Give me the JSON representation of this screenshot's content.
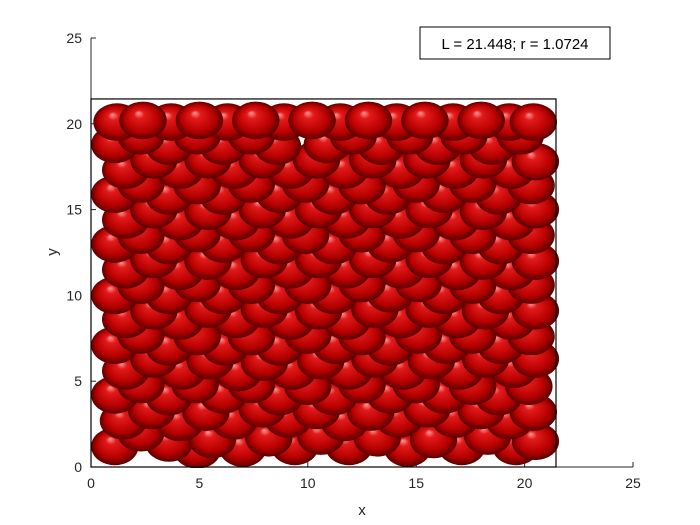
{
  "chart_data": {
    "type": "scatter",
    "annotation": "L = 21.448; r = 1.0724",
    "xlabel": "x",
    "ylabel": "y",
    "xlim": [
      0,
      25
    ],
    "ylim": [
      0,
      25
    ],
    "x_ticks": [
      "0",
      "5",
      "10",
      "15",
      "20",
      "25"
    ],
    "y_ticks": [
      "0",
      "5",
      "10",
      "15",
      "20",
      "25"
    ],
    "box_size": 21.448,
    "particle_radius": 1.0724,
    "marker": "shaded sphere",
    "colors": {
      "sphere": "#cc0000",
      "sphere_dark": "#5a0000",
      "sphere_highlight": "#ff9a9a",
      "axis": "#262626",
      "box": "#000000"
    },
    "particles": [
      [
        1.1,
        1.2
      ],
      [
        2.3,
        2.0
      ],
      [
        3.6,
        1.4
      ],
      [
        4.9,
        1.0
      ],
      [
        5.6,
        1.6
      ],
      [
        7.0,
        1.1
      ],
      [
        8.2,
        1.7
      ],
      [
        9.4,
        1.2
      ],
      [
        10.6,
        1.8
      ],
      [
        11.9,
        1.2
      ],
      [
        13.2,
        1.7
      ],
      [
        14.6,
        1.1
      ],
      [
        15.8,
        1.6
      ],
      [
        17.1,
        1.2
      ],
      [
        18.3,
        1.8
      ],
      [
        19.6,
        1.2
      ],
      [
        20.5,
        1.5
      ],
      [
        1.5,
        2.7
      ],
      [
        2.8,
        3.3
      ],
      [
        4.1,
        2.6
      ],
      [
        5.3,
        3.2
      ],
      [
        6.6,
        2.7
      ],
      [
        7.9,
        3.4
      ],
      [
        9.1,
        2.8
      ],
      [
        10.4,
        3.3
      ],
      [
        11.7,
        2.6
      ],
      [
        12.9,
        3.2
      ],
      [
        14.2,
        2.8
      ],
      [
        15.5,
        3.4
      ],
      [
        16.8,
        2.8
      ],
      [
        18.0,
        3.3
      ],
      [
        19.3,
        2.7
      ],
      [
        20.4,
        3.2
      ],
      [
        1.1,
        4.2
      ],
      [
        2.3,
        4.8
      ],
      [
        3.6,
        4.1
      ],
      [
        4.8,
        4.8
      ],
      [
        6.1,
        4.2
      ],
      [
        7.4,
        4.8
      ],
      [
        8.7,
        4.1
      ],
      [
        10.0,
        4.7
      ],
      [
        11.2,
        4.1
      ],
      [
        12.5,
        4.8
      ],
      [
        13.8,
        4.2
      ],
      [
        15.0,
        4.8
      ],
      [
        16.3,
        4.2
      ],
      [
        17.6,
        4.7
      ],
      [
        18.8,
        4.1
      ],
      [
        20.2,
        4.7
      ],
      [
        1.6,
        5.6
      ],
      [
        2.9,
        6.3
      ],
      [
        4.2,
        5.6
      ],
      [
        5.5,
        6.2
      ],
      [
        6.8,
        5.5
      ],
      [
        8.0,
        6.1
      ],
      [
        9.3,
        5.6
      ],
      [
        10.6,
        6.2
      ],
      [
        11.9,
        5.6
      ],
      [
        13.1,
        6.3
      ],
      [
        14.4,
        5.6
      ],
      [
        15.7,
        6.2
      ],
      [
        17.0,
        5.6
      ],
      [
        18.2,
        6.3
      ],
      [
        19.5,
        5.7
      ],
      [
        20.5,
        6.3
      ],
      [
        1.1,
        7.1
      ],
      [
        2.3,
        7.7
      ],
      [
        3.6,
        7.0
      ],
      [
        4.9,
        7.6
      ],
      [
        6.2,
        7.0
      ],
      [
        7.4,
        7.6
      ],
      [
        8.7,
        7.0
      ],
      [
        10.0,
        7.7
      ],
      [
        11.3,
        7.1
      ],
      [
        12.5,
        7.6
      ],
      [
        13.8,
        7.0
      ],
      [
        15.1,
        7.7
      ],
      [
        16.4,
        7.1
      ],
      [
        17.6,
        7.7
      ],
      [
        18.9,
        7.1
      ],
      [
        20.3,
        7.6
      ],
      [
        1.6,
        8.6
      ],
      [
        2.9,
        9.1
      ],
      [
        4.1,
        8.5
      ],
      [
        5.4,
        9.2
      ],
      [
        6.7,
        8.6
      ],
      [
        8.0,
        9.2
      ],
      [
        9.2,
        8.5
      ],
      [
        10.5,
        9.1
      ],
      [
        11.8,
        8.5
      ],
      [
        13.1,
        9.2
      ],
      [
        14.3,
        8.6
      ],
      [
        15.6,
        9.2
      ],
      [
        16.9,
        8.6
      ],
      [
        18.2,
        9.1
      ],
      [
        19.4,
        8.5
      ],
      [
        20.5,
        9.1
      ],
      [
        1.1,
        10.0
      ],
      [
        2.3,
        10.6
      ],
      [
        3.6,
        10.0
      ],
      [
        4.9,
        10.7
      ],
      [
        6.1,
        10.0
      ],
      [
        7.4,
        10.6
      ],
      [
        8.7,
        10.0
      ],
      [
        10.0,
        10.6
      ],
      [
        11.2,
        10.0
      ],
      [
        12.5,
        10.7
      ],
      [
        13.8,
        10.1
      ],
      [
        15.1,
        10.7
      ],
      [
        16.3,
        10.0
      ],
      [
        17.6,
        10.6
      ],
      [
        18.9,
        10.0
      ],
      [
        20.3,
        10.6
      ],
      [
        1.6,
        11.5
      ],
      [
        2.9,
        12.1
      ],
      [
        4.1,
        11.4
      ],
      [
        5.4,
        12.0
      ],
      [
        6.7,
        11.4
      ],
      [
        8.0,
        12.1
      ],
      [
        9.2,
        11.5
      ],
      [
        10.5,
        12.1
      ],
      [
        11.8,
        11.5
      ],
      [
        13.0,
        12.1
      ],
      [
        14.3,
        11.5
      ],
      [
        15.6,
        12.1
      ],
      [
        16.9,
        11.4
      ],
      [
        18.1,
        12.0
      ],
      [
        19.4,
        11.4
      ],
      [
        20.5,
        12.0
      ],
      [
        1.1,
        13.0
      ],
      [
        2.3,
        13.5
      ],
      [
        3.6,
        12.9
      ],
      [
        4.9,
        13.6
      ],
      [
        6.1,
        13.0
      ],
      [
        7.4,
        13.6
      ],
      [
        8.7,
        12.9
      ],
      [
        9.9,
        13.5
      ],
      [
        11.2,
        12.9
      ],
      [
        12.5,
        13.6
      ],
      [
        13.8,
        13.0
      ],
      [
        15.0,
        13.6
      ],
      [
        16.3,
        12.9
      ],
      [
        17.6,
        13.5
      ],
      [
        18.9,
        12.9
      ],
      [
        20.3,
        13.5
      ],
      [
        1.6,
        14.4
      ],
      [
        2.9,
        15.0
      ],
      [
        4.1,
        14.3
      ],
      [
        5.4,
        14.9
      ],
      [
        6.7,
        14.3
      ],
      [
        7.9,
        15.0
      ],
      [
        9.2,
        14.4
      ],
      [
        10.5,
        15.0
      ],
      [
        11.8,
        14.4
      ],
      [
        13.0,
        15.0
      ],
      [
        14.3,
        14.4
      ],
      [
        15.6,
        15.0
      ],
      [
        16.8,
        14.3
      ],
      [
        18.1,
        14.9
      ],
      [
        19.4,
        14.3
      ],
      [
        20.5,
        15.0
      ],
      [
        1.1,
        15.9
      ],
      [
        2.3,
        16.5
      ],
      [
        3.6,
        15.8
      ],
      [
        4.9,
        16.4
      ],
      [
        6.1,
        15.8
      ],
      [
        7.4,
        16.5
      ],
      [
        8.7,
        15.9
      ],
      [
        9.9,
        16.5
      ],
      [
        11.2,
        15.8
      ],
      [
        12.5,
        16.4
      ],
      [
        13.7,
        15.8
      ],
      [
        15.0,
        16.5
      ],
      [
        16.3,
        15.9
      ],
      [
        17.6,
        16.5
      ],
      [
        18.8,
        15.8
      ],
      [
        20.3,
        16.4
      ],
      [
        1.6,
        17.3
      ],
      [
        2.9,
        17.9
      ],
      [
        4.1,
        17.3
      ],
      [
        5.4,
        17.9
      ],
      [
        6.6,
        17.3
      ],
      [
        7.9,
        17.9
      ],
      [
        9.2,
        17.3
      ],
      [
        10.4,
        17.9
      ],
      [
        11.7,
        17.3
      ],
      [
        13.0,
        17.9
      ],
      [
        14.3,
        17.3
      ],
      [
        15.5,
        17.9
      ],
      [
        16.8,
        17.3
      ],
      [
        18.1,
        17.9
      ],
      [
        19.4,
        17.3
      ],
      [
        20.5,
        17.8
      ],
      [
        1.1,
        18.8
      ],
      [
        2.3,
        19.3
      ],
      [
        3.6,
        18.7
      ],
      [
        4.9,
        19.3
      ],
      [
        6.1,
        18.7
      ],
      [
        7.4,
        19.3
      ],
      [
        8.6,
        18.7
      ],
      [
        10.9,
        18.8
      ],
      [
        12.1,
        19.3
      ],
      [
        13.4,
        18.7
      ],
      [
        14.7,
        19.3
      ],
      [
        16.0,
        18.7
      ],
      [
        17.2,
        19.3
      ],
      [
        18.5,
        18.7
      ],
      [
        19.8,
        19.3
      ],
      [
        1.2,
        20.1
      ],
      [
        2.4,
        20.2
      ],
      [
        3.7,
        20.1
      ],
      [
        5.0,
        20.2
      ],
      [
        6.3,
        20.1
      ],
      [
        7.6,
        20.2
      ],
      [
        8.9,
        20.1
      ],
      [
        10.2,
        20.2
      ],
      [
        11.5,
        20.1
      ],
      [
        12.8,
        20.2
      ],
      [
        14.1,
        20.1
      ],
      [
        15.4,
        20.2
      ],
      [
        16.7,
        20.1
      ],
      [
        18.0,
        20.2
      ],
      [
        19.3,
        20.1
      ],
      [
        20.4,
        20.1
      ]
    ]
  }
}
